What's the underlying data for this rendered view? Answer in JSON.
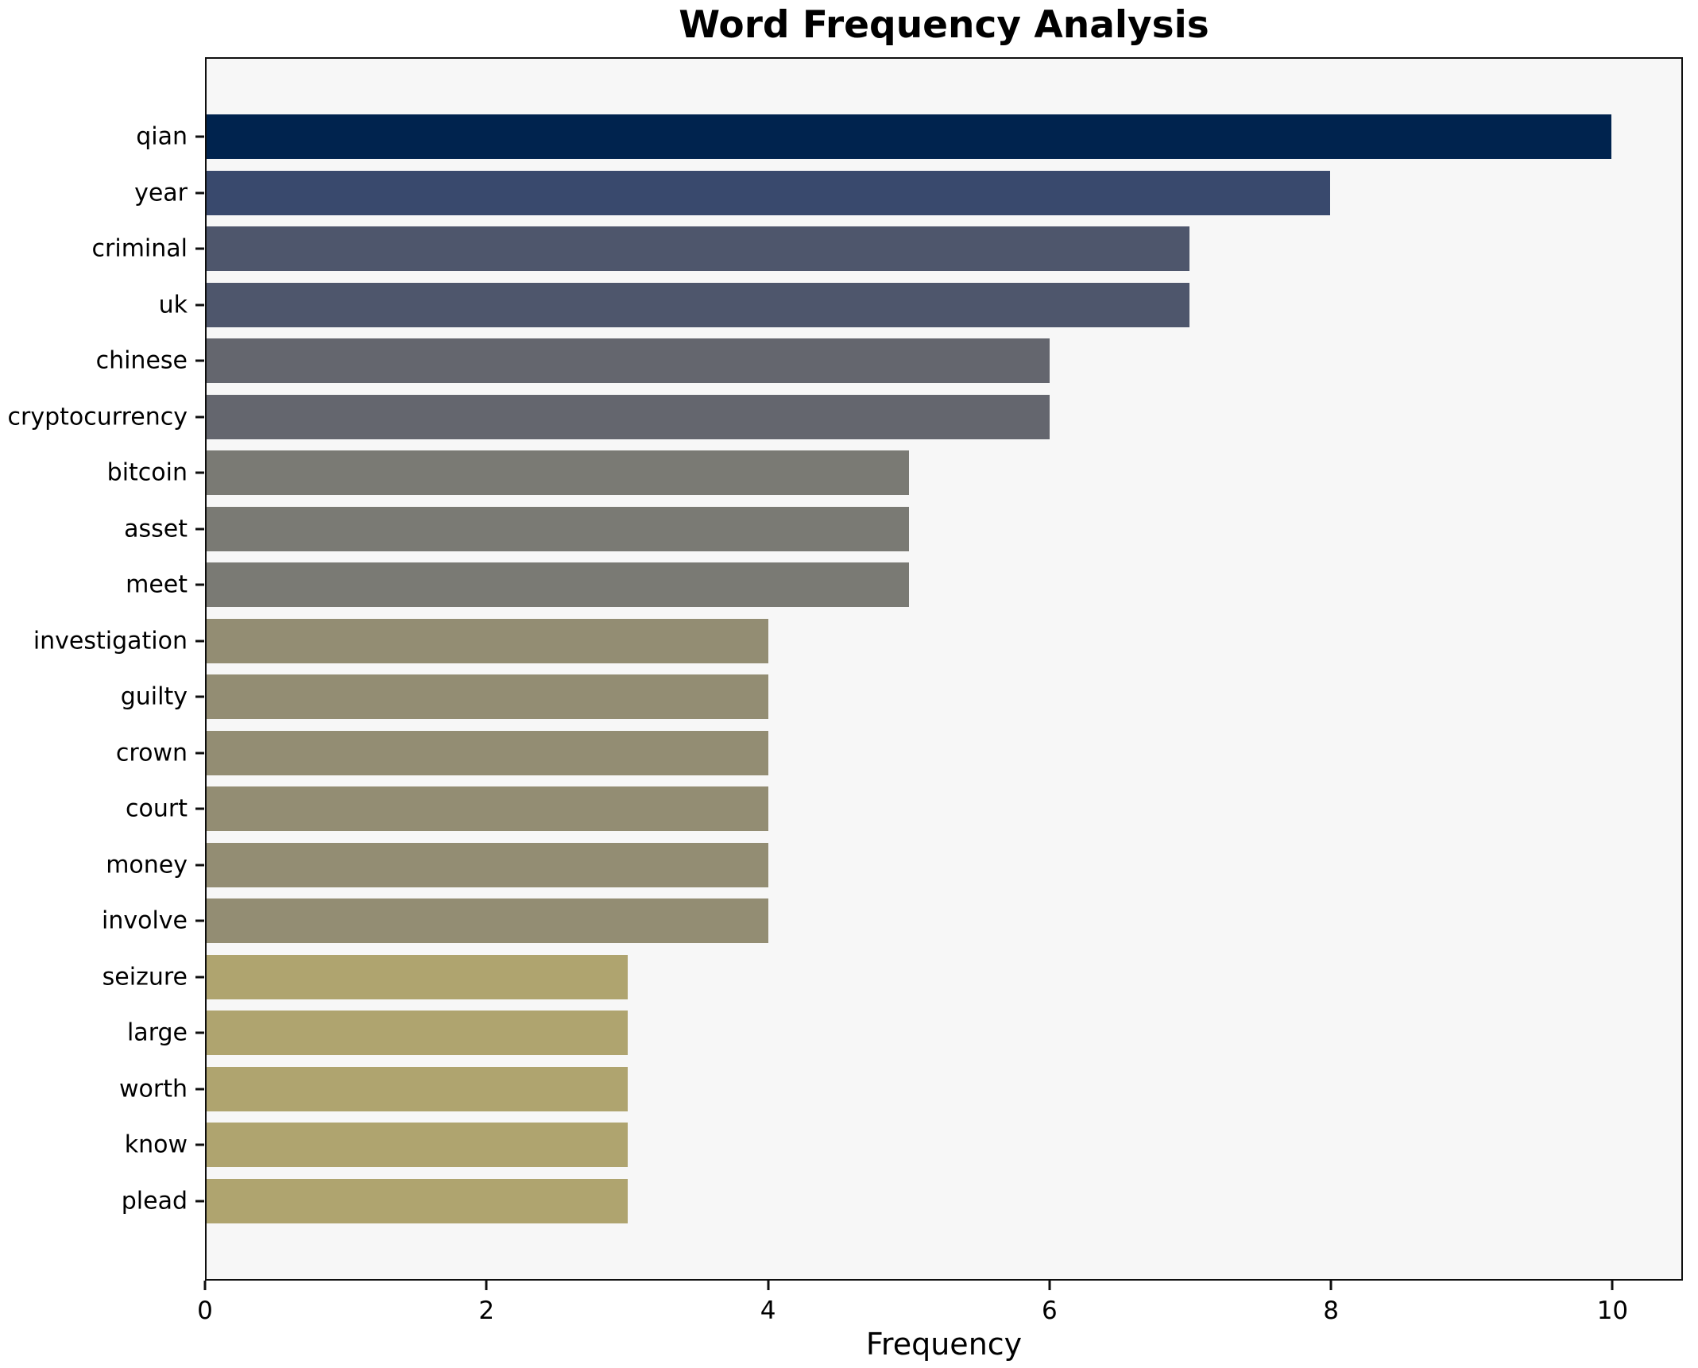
{
  "chart_data": {
    "type": "bar",
    "orientation": "horizontal",
    "title": "Word Frequency Analysis",
    "xlabel": "Frequency",
    "ylabel": "",
    "categories": [
      "qian",
      "year",
      "criminal",
      "uk",
      "chinese",
      "cryptocurrency",
      "bitcoin",
      "asset",
      "meet",
      "investigation",
      "guilty",
      "crown",
      "court",
      "money",
      "involve",
      "seizure",
      "large",
      "worth",
      "know",
      "plead"
    ],
    "values": [
      10,
      8,
      7,
      7,
      6,
      6,
      5,
      5,
      5,
      4,
      4,
      4,
      4,
      4,
      4,
      3,
      3,
      3,
      3,
      3
    ],
    "bar_colors": [
      "#00234e",
      "#39496d",
      "#4e566c",
      "#4e566c",
      "#64666e",
      "#64666e",
      "#7a7a74",
      "#7a7a74",
      "#7a7a74",
      "#938d73",
      "#938d73",
      "#938d73",
      "#938d73",
      "#938d73",
      "#938d73",
      "#afa46f",
      "#afa46f",
      "#afa46f",
      "#afa46f",
      "#afa46f"
    ],
    "x_ticks": [
      0,
      2,
      4,
      6,
      8,
      10
    ],
    "xlim": [
      0,
      10.5
    ],
    "grid": false,
    "legend": false,
    "plot_background": "#f7f7f7",
    "figure_background": "#ffffff",
    "spine_color": "#0f0f0f",
    "text_color": "#000000"
  }
}
